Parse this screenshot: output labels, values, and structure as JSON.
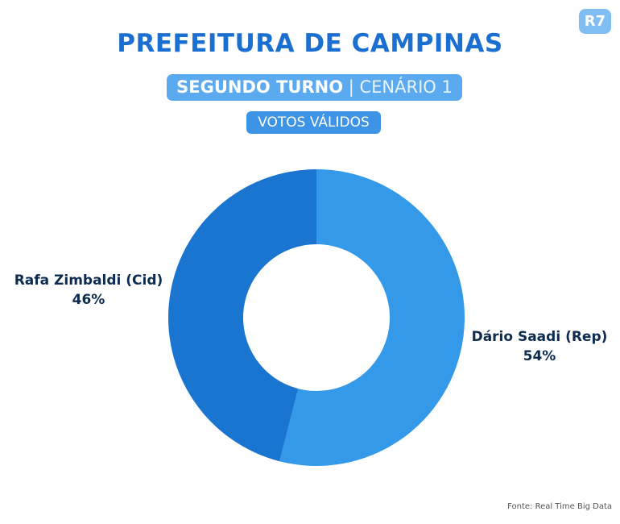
{
  "header": {
    "title": "PREFEITURA DE CAMPINAS",
    "subtitle_bold": "SEGUNDO TURNO",
    "subtitle_sep": " | ",
    "subtitle_light": "CENÁRIO 1",
    "badge": "VOTOS VÁLIDOS",
    "logo": "R7"
  },
  "chart_data": {
    "type": "pie",
    "donut": true,
    "title": "PREFEITURA DE CAMPINAS",
    "categories": [
      "Dário Saadi (Rep)",
      "Rafa Zimbaldi (Cid)"
    ],
    "values": [
      54,
      46
    ],
    "labels": [
      "54%",
      "46%"
    ],
    "colors": [
      "#3399e8",
      "#1a75d1"
    ]
  },
  "footer": {
    "source": "Fonte: Real Time Big Data"
  }
}
